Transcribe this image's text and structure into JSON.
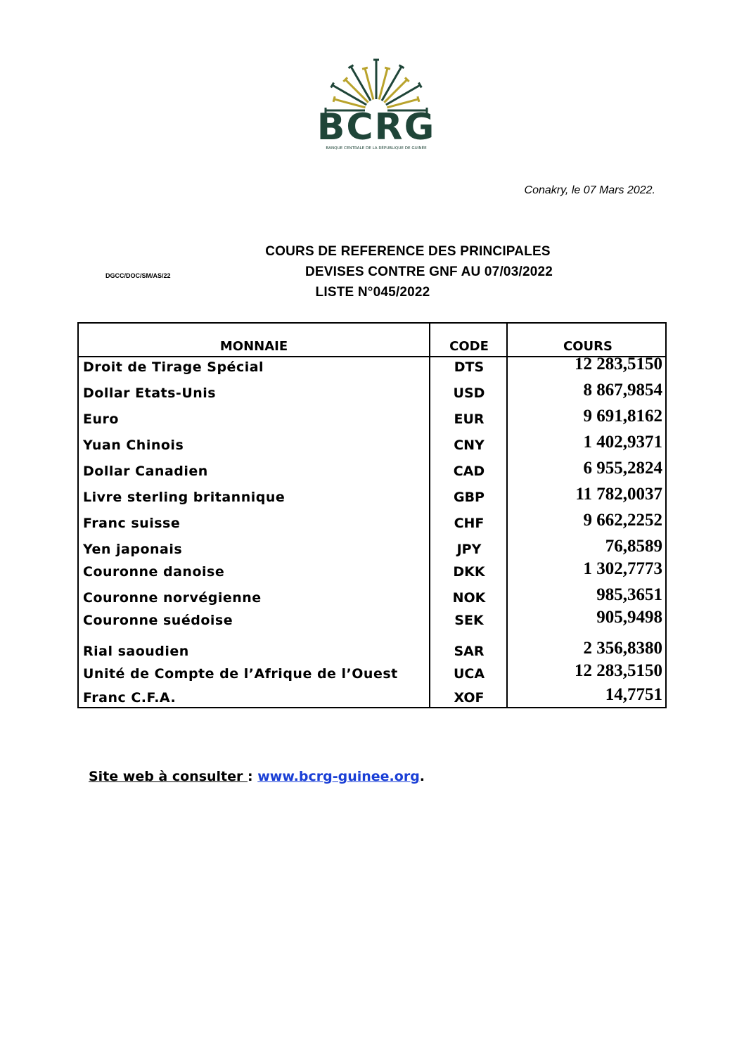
{
  "logo": {
    "text": "BCRG",
    "subtitle": "BANQUE CENTRALE DE LA RÉPUBLIQUE DE GUINÉE",
    "colors": {
      "green": "#1f4538",
      "gold": "#b9a32c"
    }
  },
  "date_line": "Conakry, le 07 Mars 2022.",
  "reference": "DGCC/DOC/SM/AS/22",
  "title": [
    "COURS DE REFERENCE DES PRINCIPALES",
    "DEVISES CONTRE GNF AU 07/03/2022",
    "LISTE N°045/2022"
  ],
  "table": {
    "headers": [
      "MONNAIE",
      "CODE",
      "COURS"
    ],
    "rows": [
      {
        "name": "Droit de Tirage Spécial",
        "code": "DTS",
        "rate": "12 283,5150"
      },
      {
        "name": "Dollar Etats-Unis",
        "code": "USD",
        "rate": "8 867,9854"
      },
      {
        "name": "Euro",
        "code": "EUR",
        "rate": "9 691,8162"
      },
      {
        "name": "Yuan Chinois",
        "code": "CNY",
        "rate": "1 402,9371"
      },
      {
        "name": "Dollar Canadien",
        "code": "CAD",
        "rate": "6 955,2824"
      },
      {
        "name": "Livre sterling britannique",
        "code": "GBP",
        "rate": "11 782,0037"
      },
      {
        "name": "Franc suisse",
        "code": "CHF",
        "rate": "9 662,2252"
      },
      {
        "name": "Yen japonais",
        "code": "JPY",
        "rate": "76,8589"
      },
      {
        "name": "Couronne danoise",
        "code": "DKK",
        "rate": "1 302,7773"
      },
      {
        "name": "Couronne norvégienne",
        "code": "NOK",
        "rate": "985,3651"
      },
      {
        "name": "Couronne suédoise",
        "code": "SEK",
        "rate": "905,9498"
      },
      {
        "name": "Rial saoudien",
        "code": "SAR",
        "rate": "2 356,8380"
      },
      {
        "name": "Unité de Compte de l’Afrique de l’Ouest",
        "code": "UCA",
        "rate": "12 283,5150"
      },
      {
        "name": "Franc C.F.A.",
        "code": "XOF",
        "rate": "14,7751"
      }
    ]
  },
  "footer": {
    "label": "Site web à consulter ",
    "sep": ": ",
    "link": "www.bcrg-guinee.org",
    "end": "."
  }
}
